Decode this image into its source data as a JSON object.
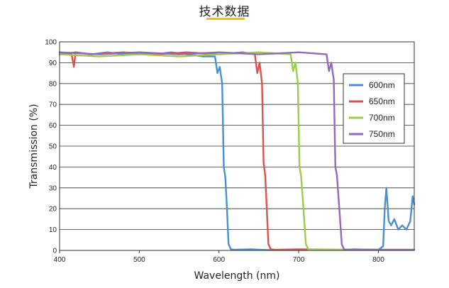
{
  "page": {
    "heading": "技术数据"
  },
  "chart_data": {
    "type": "line",
    "title": "",
    "xlabel": "Wavelength (nm)",
    "ylabel": "Transmission (%)",
    "xlim": [
      400,
      845
    ],
    "ylim": [
      0,
      100
    ],
    "xticks": [
      400,
      500,
      600,
      700,
      800
    ],
    "yticks": [
      0,
      10,
      20,
      30,
      40,
      50,
      60,
      70,
      80,
      90,
      100
    ],
    "grid": "horizontal",
    "legend": "right",
    "series": [
      {
        "name": "600nm",
        "color": "#4a8fd0",
        "x": [
          400,
          420,
          440,
          460,
          480,
          500,
          520,
          540,
          560,
          580,
          595,
          598,
          601,
          604,
          606,
          608,
          610,
          612,
          615,
          620,
          640,
          660,
          700,
          760,
          800,
          806,
          808,
          810,
          813,
          816,
          820,
          825,
          830,
          835,
          840,
          843,
          845
        ],
        "y": [
          94,
          95,
          94,
          95,
          94,
          95,
          94,
          95,
          94,
          93,
          93,
          85,
          88,
          80,
          40,
          35,
          20,
          3,
          0.5,
          0.3,
          0.5,
          0.2,
          0.2,
          0.3,
          0.3,
          2,
          20,
          30,
          14,
          12,
          15,
          10,
          12,
          10,
          14,
          26,
          22
        ]
      },
      {
        "name": "650nm",
        "color": "#d9534f",
        "x": [
          400,
          415,
          418,
          420,
          440,
          480,
          520,
          560,
          600,
          630,
          645,
          648,
          651,
          654,
          656,
          658,
          660,
          662,
          665,
          670,
          700,
          750,
          800,
          845
        ],
        "y": [
          95,
          94,
          88,
          95,
          94,
          95,
          94,
          95,
          94,
          95,
          94,
          85,
          90,
          80,
          42,
          36,
          20,
          3,
          0.5,
          0.3,
          0.5,
          0.3,
          0.3,
          0.3
        ]
      },
      {
        "name": "700nm",
        "color": "#9acd4a",
        "x": [
          400,
          450,
          500,
          550,
          600,
          650,
          690,
          693,
          696,
          699,
          701,
          703,
          706,
          709,
          712,
          715,
          720,
          760,
          800,
          845
        ],
        "y": [
          94,
          93,
          94,
          93,
          94,
          95,
          94,
          86,
          90,
          80,
          40,
          36,
          20,
          3,
          0.5,
          0.3,
          0.5,
          0.3,
          0.3,
          0.3
        ]
      },
      {
        "name": "750nm",
        "color": "#8e6bbf",
        "x": [
          400,
          450,
          500,
          550,
          600,
          650,
          700,
          735,
          738,
          741,
          744,
          746,
          748,
          751,
          754,
          757,
          760,
          770,
          800,
          845
        ],
        "y": [
          95,
          94,
          95,
          94,
          95,
          94,
          95,
          94,
          86,
          90,
          82,
          40,
          36,
          20,
          3,
          0.5,
          0.3,
          0.5,
          0.3,
          0.3
        ]
      }
    ]
  }
}
